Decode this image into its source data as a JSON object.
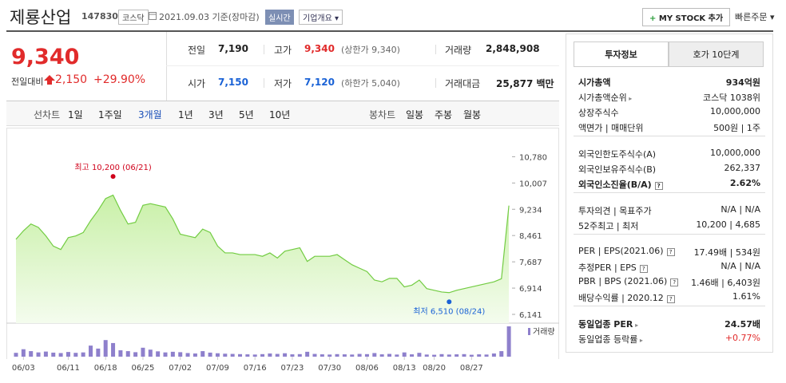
{
  "header": {
    "name": "제룡산업",
    "code": "147830",
    "market": "코스닥",
    "date": "2021.09.03 기준(장마감)",
    "realtime": "실시간",
    "company_info": "기업개요",
    "my_stock": "MY STOCK 추가",
    "quick_order": "빠른주문"
  },
  "quote": {
    "price": "9,340",
    "change_label": "전일대비",
    "change": "2,150",
    "change_rate": "+29.90%"
  },
  "summary": [
    [
      {
        "label": "전일",
        "value": "7,190"
      },
      {
        "label": "고가",
        "value": "9,340",
        "note": "(상한가 9,340)",
        "color": "#e12b2b"
      },
      {
        "label": "거래량",
        "value": "2,848,908"
      }
    ],
    [
      {
        "label": "시가",
        "value": "7,150",
        "color": "#1a62d6"
      },
      {
        "label": "저가",
        "value": "7,120",
        "note": "(하한가 5,040)",
        "color": "#1a62d6"
      },
      {
        "label": "거래대금",
        "value": "25,877 백만"
      }
    ]
  ],
  "line_periods": {
    "label": "선차트",
    "options": [
      "1일",
      "1주일",
      "3개월",
      "1년",
      "3년",
      "5년",
      "10년"
    ],
    "selected": 2
  },
  "candle_periods": {
    "label": "봉차트",
    "options": [
      "일봉",
      "주봉",
      "월봉"
    ]
  },
  "chart_data": {
    "type": "line",
    "categories": [
      null,
      "06/03",
      null,
      null,
      null,
      null,
      null,
      "06/11",
      null,
      null,
      null,
      null,
      "06/18",
      null,
      null,
      null,
      null,
      "06/25",
      null,
      null,
      null,
      null,
      "07/02",
      null,
      null,
      null,
      null,
      "07/09",
      null,
      null,
      null,
      null,
      "07/16",
      null,
      null,
      null,
      null,
      "07/23",
      null,
      null,
      null,
      null,
      "07/30",
      null,
      null,
      null,
      null,
      "08/06",
      null,
      null,
      null,
      null,
      "08/13",
      null,
      null,
      null,
      "08/20",
      null,
      null,
      null,
      null,
      "08/27",
      null,
      null,
      null,
      null,
      null
    ],
    "series": [
      {
        "color": "#72cc42",
        "values": [
          8350,
          8600,
          8800,
          8700,
          8450,
          8150,
          8050,
          8400,
          8450,
          8550,
          8900,
          9200,
          9550,
          9650,
          9200,
          8800,
          8850,
          9350,
          9400,
          9350,
          9300,
          8950,
          8500,
          8450,
          8400,
          8650,
          8550,
          8150,
          7950,
          7950,
          7900,
          7900,
          7900,
          7850,
          7950,
          7800,
          8000,
          8050,
          8100,
          7700,
          7850,
          7850,
          7850,
          7900,
          7750,
          7600,
          7500,
          7400,
          7150,
          7100,
          7200,
          7200,
          6950,
          7000,
          7150,
          6900,
          6850,
          6800,
          6780,
          6850,
          6900,
          6950,
          7000,
          7050,
          7100,
          7190,
          9340
        ]
      },
      {
        "name": "거래량",
        "color": "#8e80cc",
        "values": [
          360000,
          700000,
          520000,
          400000,
          480000,
          380000,
          340000,
          440000,
          360000,
          400000,
          1040000,
          760000,
          1560000,
          1280000,
          600000,
          520000,
          420000,
          840000,
          660000,
          500000,
          400000,
          460000,
          420000,
          340000,
          300000,
          520000,
          380000,
          320000,
          280000,
          260000,
          240000,
          220000,
          200000,
          240000,
          300000,
          260000,
          320000,
          220000,
          240000,
          460000,
          260000,
          220000,
          200000,
          240000,
          220000,
          200000,
          260000,
          240000,
          340000,
          220000,
          260000,
          200000,
          400000,
          220000,
          360000,
          200000,
          180000,
          240000,
          200000,
          220000,
          240000,
          180000,
          220000,
          200000,
          300000,
          520000,
          2848908
        ]
      }
    ],
    "ylim": [
      6000,
      11400
    ],
    "yticks": [
      {
        "value": 6141,
        "label": "6,141"
      },
      {
        "value": 6914,
        "label": "6,914"
      },
      {
        "value": 7687,
        "label": "7,687"
      },
      {
        "value": 8461,
        "label": "8,461"
      },
      {
        "value": 9234,
        "label": "9,234"
      },
      {
        "value": 10007,
        "label": "10,007"
      },
      {
        "value": 10780,
        "label": "10,780"
      }
    ],
    "annotations": [
      {
        "text": "최고 10,200 (06/21)",
        "value": 10200,
        "color": "#d0021b"
      },
      {
        "text": "최저 6,510 (08/24)",
        "value": 6510,
        "color": "#1a62d6"
      }
    ]
  },
  "invest_tabs": [
    "투자정보",
    "호가 10단계"
  ],
  "invest_groups": [
    [
      {
        "label": "시가총액",
        "value": "934억원",
        "bold": true
      },
      {
        "label": "시가총액순위",
        "value": "코스닥 1038위",
        "arrow": true
      },
      {
        "label": "상장주식수",
        "value": "10,000,000"
      },
      {
        "label": "액면가 | 매매단위",
        "value": "500원 | 1주"
      }
    ],
    [
      {
        "label": "외국인한도주식수(A)",
        "value": "10,000,000"
      },
      {
        "label": "외국인보유주식수(B)",
        "value": "262,337"
      },
      {
        "label": "외국인소진율(B/A)",
        "value": "2.62%",
        "bold": true,
        "help": true
      }
    ],
    [
      {
        "label": "투자의견 | 목표주가",
        "value": "N/A | N/A"
      },
      {
        "label": "52주최고 | 최저",
        "value": "10,200 | 4,685"
      }
    ],
    [
      {
        "label": "PER | EPS(2021.06)",
        "value": "17.49배 | 534원",
        "help": true
      },
      {
        "label": "추정PER | EPS",
        "value": "N/A | N/A",
        "help": true
      },
      {
        "label": "PBR | BPS (2021.06)",
        "value": "1.46배 | 6,403원",
        "help": true
      },
      {
        "label": "배당수익률 | 2020.12",
        "value": "1.61%",
        "help": true
      }
    ],
    [
      {
        "label": "동일업종 PER",
        "value": "24.57배",
        "bold": true,
        "arrow": true
      },
      {
        "label": "동일업종 등락률",
        "value": "+0.77%",
        "arrow": true,
        "color": "#e12b2b"
      }
    ]
  ]
}
